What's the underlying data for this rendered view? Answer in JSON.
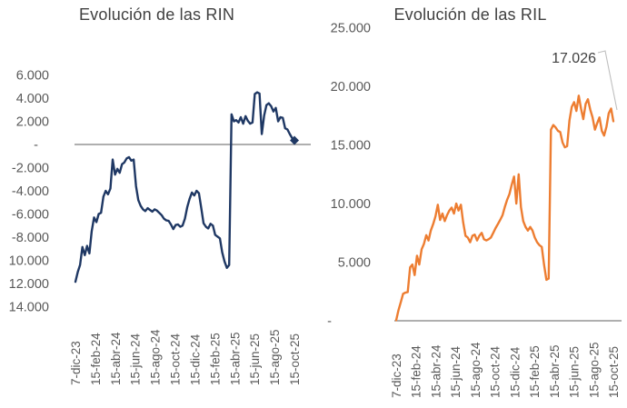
{
  "page": {
    "background": "#ffffff"
  },
  "chart_data": [
    {
      "type": "line",
      "title": "Evolución de las RIN",
      "xlabel": "",
      "ylabel": "",
      "grid": false,
      "legend": "none",
      "ylim": [
        -14000,
        6000
      ],
      "frequency": "weekly",
      "x_range": [
        "7-dic-23",
        "15-oct-25"
      ],
      "x_tick_labels": [
        "7-dic-23",
        "15-feb-24",
        "15-abr-24",
        "15-jun-24",
        "15-ago-24",
        "15-oct-24",
        "15-dic-24",
        "15-feb-25",
        "15-abr-25",
        "15-jun-25",
        "15-ago-25",
        "15-oct-25"
      ],
      "y_tick_labels": [
        "6.000",
        "4.000",
        "2.000",
        "-",
        "-2.000",
        "-4.000",
        "-6.000",
        "-8.000",
        "10.000",
        "12.000",
        "14.000"
      ],
      "y_tick_values": [
        6000,
        4000,
        2000,
        0,
        -2000,
        -4000,
        -6000,
        -8000,
        -10000,
        -12000,
        -14000
      ],
      "axis_color": "#7f7f7f",
      "label_color": "#595959",
      "title_color": "#404040",
      "end_marker": "diamond",
      "series": [
        {
          "name": "RIN",
          "color": "#1f3864",
          "values": [
            -11850,
            -11000,
            -10400,
            -8850,
            -9550,
            -8750,
            -9400,
            -7500,
            -6300,
            -6700,
            -6000,
            -5900,
            -4500,
            -4000,
            -4300,
            -3800,
            -1300,
            -2600,
            -2100,
            -2450,
            -1700,
            -1550,
            -1200,
            -1100,
            -1400,
            -1300,
            -3600,
            -4800,
            -5300,
            -5600,
            -5750,
            -5500,
            -5650,
            -5800,
            -5600,
            -5700,
            -5900,
            -6100,
            -6400,
            -6550,
            -6600,
            -6900,
            -7300,
            -6950,
            -6900,
            -7100,
            -7000,
            -6400,
            -5400,
            -4700,
            -4150,
            -4400,
            -4000,
            -4200,
            -5500,
            -6800,
            -7100,
            -7250,
            -6850,
            -7000,
            -7800,
            -7950,
            -8100,
            -9300,
            -10100,
            -10650,
            -10400,
            2600,
            2000,
            2100,
            1900,
            2350,
            1800,
            2450,
            2050,
            1800,
            1900,
            4350,
            4500,
            4400,
            900,
            2500,
            3400,
            3550,
            3300,
            2850,
            3150,
            2000,
            2350,
            2300,
            1400,
            1300,
            900,
            550,
            350
          ]
        }
      ]
    },
    {
      "type": "line",
      "title": "Evolución de las RIL",
      "xlabel": "",
      "ylabel": "",
      "grid": false,
      "legend": "none",
      "ylim": [
        0,
        25000
      ],
      "frequency": "weekly",
      "x_range": [
        "7-dic-23",
        "15-oct-25"
      ],
      "x_tick_labels": [
        "7-dic-23",
        "15-feb-24",
        "15-abr-24",
        "15-jun-24",
        "15-ago-24",
        "15-oct-24",
        "15-dic-24",
        "15-feb-25",
        "15-abr-25",
        "15-jun-25",
        "15-ago-25",
        "15-oct-25"
      ],
      "y_tick_labels": [
        "25.000",
        "20.000",
        "15.000",
        "10.000",
        "5.000",
        "-"
      ],
      "y_tick_values": [
        25000,
        20000,
        15000,
        10000,
        5000,
        0
      ],
      "axis_color": "#7f7f7f",
      "label_color": "#595959",
      "title_color": "#404040",
      "annotation": {
        "text": "17.026",
        "value": 17026,
        "color": "#404040",
        "leader_color": "#bfbfbf"
      },
      "series": [
        {
          "name": "RIL",
          "color": "#ed7d31",
          "values": [
            50,
            900,
            1600,
            2300,
            2400,
            2450,
            4550,
            4800,
            3900,
            5550,
            4800,
            6100,
            6550,
            7300,
            6850,
            7700,
            8250,
            8900,
            9900,
            8600,
            9150,
            8500,
            9000,
            9400,
            9650,
            9150,
            10000,
            9400,
            9900,
            8400,
            7250,
            7100,
            6700,
            7250,
            7350,
            6850,
            7250,
            7500,
            6950,
            6850,
            6950,
            7100,
            7500,
            7900,
            8250,
            8600,
            9000,
            9700,
            10300,
            10800,
            11600,
            12300,
            10000,
            12500,
            9700,
            8500,
            8000,
            7700,
            8000,
            7700,
            7100,
            6700,
            6450,
            6300,
            4800,
            3500,
            3600,
            16300,
            16700,
            16500,
            16200,
            16100,
            15200,
            14800,
            14900,
            17100,
            18250,
            18650,
            17900,
            19200,
            18100,
            17200,
            18500,
            18900,
            18000,
            17350,
            16300,
            16850,
            17350,
            16200,
            15800,
            16550,
            17700,
            18100,
            17026
          ]
        }
      ]
    }
  ]
}
